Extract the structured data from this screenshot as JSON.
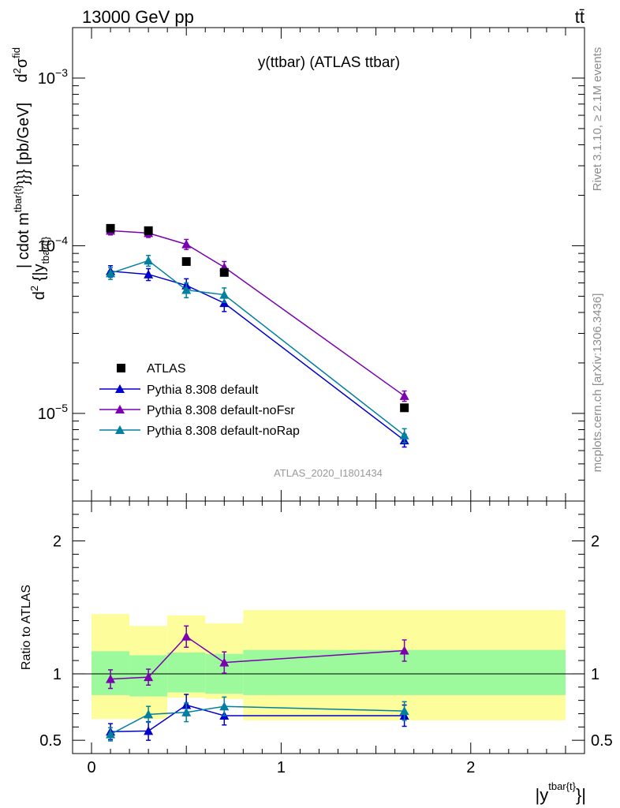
{
  "header": {
    "energy_label": "13000 GeV pp",
    "process_label": "tt̄",
    "plot_title": "y(ttbar) (ATLAS ttbar)",
    "analysis_id": "ATLAS_2020_I1801434",
    "rivet_label": "Rivet 3.1.10, ≥ 2.1M events",
    "site_label": "mcplots.cern.ch [arXiv:1306.3436]"
  },
  "chart_data": [
    {
      "type": "scatter",
      "panel": "main",
      "y_scale": "log",
      "ylim": [
        3e-06,
        0.002
      ],
      "xlim": [
        -0.1,
        2.6
      ],
      "ylabel_parts": {
        "d1": "d",
        "sup1": "2",
        "sigma": "σ",
        "fid": "fid",
        "d2": "d",
        "sup2": "2",
        "mid": " {|y",
        "sub": "tbar{t}",
        "mid2": "| cdot m",
        "sup3": "tbar{t}",
        "tail": "}}} [pb/GeV]"
      },
      "y_ticks": [
        {
          "value": 1e-05,
          "base": "10",
          "exp": "−5"
        },
        {
          "value": 0.0001,
          "base": "10",
          "exp": "−4"
        },
        {
          "value": 0.001,
          "base": "10",
          "exp": "−3"
        }
      ],
      "legend_position": "bottom-left",
      "reference": {
        "name": "ATLAS",
        "x": [
          0.1,
          0.3,
          0.5,
          0.7,
          1.65
        ],
        "y": [
          0.000127,
          0.000123,
          8.05e-05,
          6.93e-05,
          1.08e-05
        ]
      },
      "series": [
        {
          "name": "Pythia 8.308 default",
          "color": "#0000cc",
          "x": [
            0.1,
            0.3,
            0.5,
            0.7,
            1.65
          ],
          "y": [
            7.05e-05,
            6.75e-05,
            5.8e-05,
            4.55e-05,
            6.9e-06
          ],
          "err": [
            5.5e-06,
            5.5e-06,
            5.5e-06,
            5e-06,
            6e-07
          ]
        },
        {
          "name": "Pythia 8.308 default-noFsr",
          "color": "#7b00b0",
          "x": [
            0.1,
            0.3,
            0.5,
            0.7,
            1.65
          ],
          "y": [
            0.000123,
            0.000119,
            0.000102,
            7.45e-05,
            1.27e-05
          ],
          "err": [
            7e-06,
            7e-06,
            7e-06,
            6e-06,
            9e-07
          ]
        },
        {
          "name": "Pythia 8.308 default-noRap",
          "color": "#00809e",
          "x": [
            0.1,
            0.3,
            0.5,
            0.7,
            1.65
          ],
          "y": [
            6.85e-05,
            8.15e-05,
            5.45e-05,
            5.1e-05,
            7.4e-06
          ],
          "err": [
            5.5e-06,
            6e-06,
            5.5e-06,
            5e-06,
            7e-07
          ]
        }
      ]
    },
    {
      "type": "scatter",
      "panel": "ratio",
      "ylabel": "Ratio to ATLAS",
      "xlabel_parts": {
        "pre": "|y",
        "sup": "tbar{t}",
        "post": "}|"
      },
      "ylim": [
        0.4,
        2.3
      ],
      "xlim": [
        -0.1,
        2.6
      ],
      "x_ticks": [
        "0",
        "1",
        "2"
      ],
      "y_ticks": [
        "0.5",
        "1",
        "2"
      ],
      "bands": {
        "edges": [
          0,
          0.2,
          0.4,
          0.6,
          0.8,
          2.5
        ],
        "green_lo": [
          0.84,
          0.83,
          0.86,
          0.85,
          0.84
        ],
        "green_hi": [
          1.17,
          1.14,
          1.16,
          1.15,
          1.18
        ],
        "yellow_lo": [
          0.66,
          0.66,
          0.82,
          0.81,
          0.65
        ],
        "yellow_hi": [
          1.45,
          1.36,
          1.44,
          1.38,
          1.48
        ],
        "green_color": "#9cfa9c",
        "yellow_color": "#fdfd9c"
      },
      "series": [
        {
          "name": "Pythia 8.308 default",
          "color": "#0000cc",
          "x": [
            0.1,
            0.3,
            0.5,
            0.7,
            1.65
          ],
          "y": [
            0.565,
            0.57,
            0.765,
            0.685,
            0.685
          ],
          "err": [
            0.06,
            0.07,
            0.08,
            0.07,
            0.08
          ]
        },
        {
          "name": "Pythia 8.308 default-noFsr",
          "color": "#7b00b0",
          "x": [
            0.1,
            0.3,
            0.5,
            0.7,
            1.65
          ],
          "y": [
            0.96,
            0.975,
            1.28,
            1.085,
            1.175
          ],
          "err": [
            0.07,
            0.06,
            0.08,
            0.08,
            0.08
          ]
        },
        {
          "name": "Pythia 8.308 default-noRap",
          "color": "#00809e",
          "x": [
            0.1,
            0.3,
            0.5,
            0.7,
            1.65
          ],
          "y": [
            0.545,
            0.695,
            0.71,
            0.755,
            0.72
          ],
          "err": [
            0.05,
            0.06,
            0.07,
            0.07,
            0.07
          ]
        }
      ]
    }
  ]
}
